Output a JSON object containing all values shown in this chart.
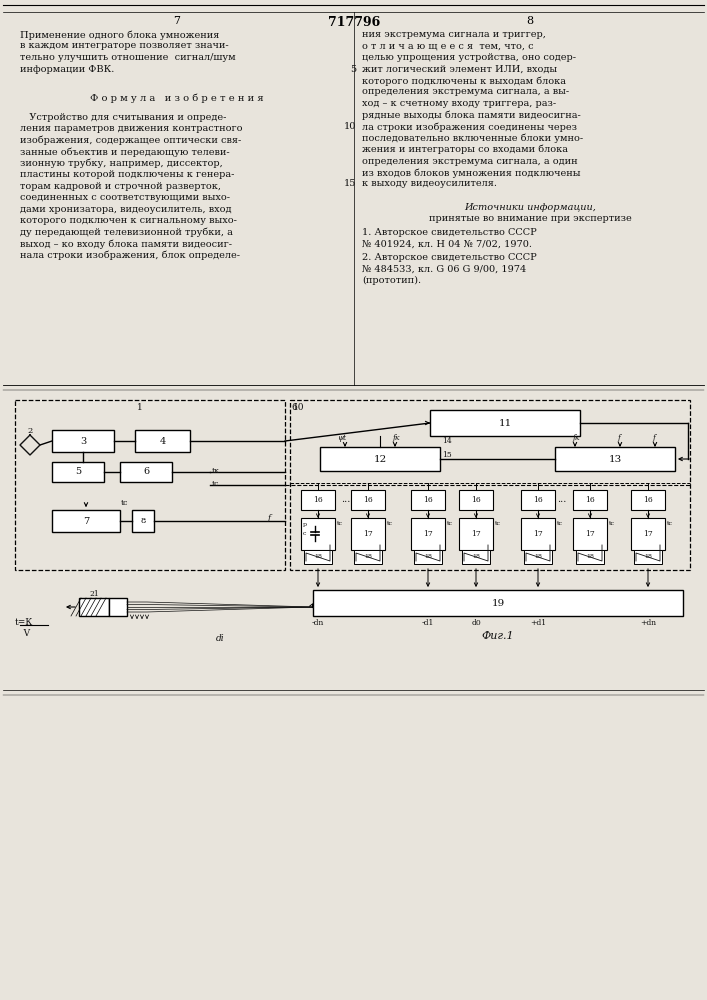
{
  "page_width": 7.07,
  "page_height": 10.0,
  "bg_color": "#e8e4dc",
  "text_color": "#111111",
  "line_color": "#111111",
  "title_text": "717796",
  "page_left": "7",
  "page_right": "8",
  "left_col_lines": [
    "Применение одного блока умножения",
    "в каждом интеграторе позволяет значи-",
    "тельно улучшить отношение  сигнал/шум",
    "информации ФВК."
  ],
  "formula_title": "Ф о р м у л а   и з о б р е т е н и я",
  "formula_lines": [
    "   Устройство для считывания и опреде-",
    "ления параметров движения контрастного",
    "изображения, содержащее оптически свя-",
    "занные объектив и передающую телеви-",
    "зионную трубку, например, диссектор,",
    "пластины которой подключены к генера-",
    "торам кадровой и строчной разверток,",
    "соединенных с соответствующими выхо-",
    "дами хронизатора, видеоусилитель, вход",
    "которого подключен к сигнальному выхо-",
    "ду передающей телевизионной трубки, а",
    "выход – ко входу блока памяти видеосиг-",
    "нала строки изображения, блок определе-"
  ],
  "right_col_lines": [
    "ния экстремума сигнала и триггер,",
    "о т л и ч а ю щ е е с я  тем, что, с",
    "целью упрощения устройства, оно содер-",
    "жит логический элемент ИЛИ, входы",
    "которого подключены к выходам блока",
    "определения экстремума сигнала, а вы-",
    "ход – к счетному входу триггера, раз-",
    "рядные выходы блока памяти видеосигна-",
    "ла строки изображения соединены через",
    "последовательно включенные блоки умно-",
    "жения и интеграторы со входами блока",
    "определения экстремума сигнала, а один",
    "из входов блоков умножения подключены",
    "к выходу видеоусилителя."
  ],
  "src_title": "Источники информации,",
  "src_sub": "принятые во внимание при экспертизе",
  "src1a": "1. Авторское свидетельство СССР",
  "src1b": "№ 401924, кл. Н 04 № 7/02, 1970.",
  "src2a": "2. Авторское свидетельство СССР",
  "src2b": "№ 484533, кл. G 06 G 9/00, 1974",
  "src2c": "(прототип).",
  "fig_caption": "Фиг.1"
}
